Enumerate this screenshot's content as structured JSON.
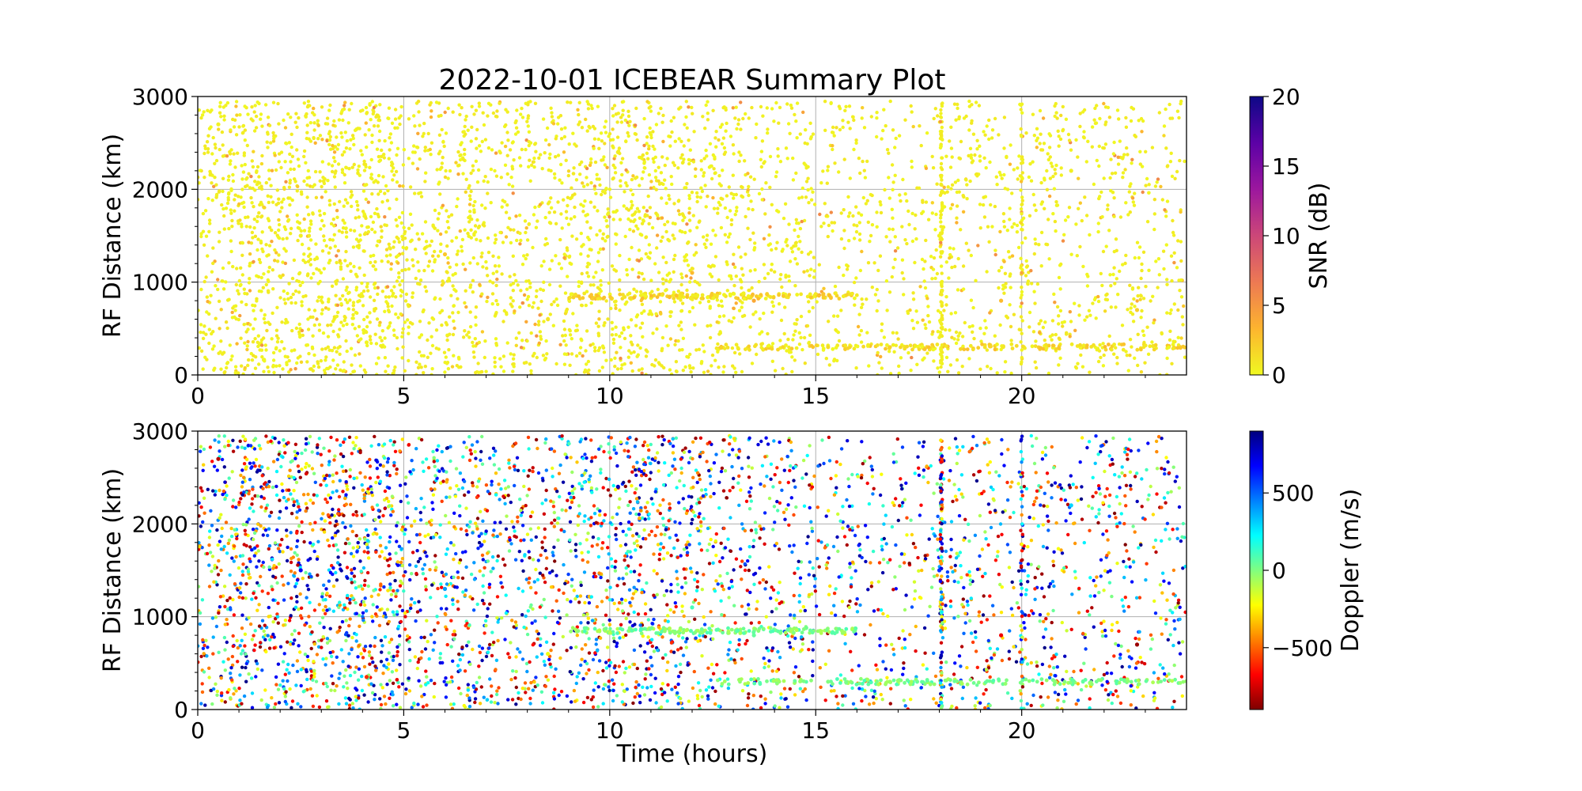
{
  "chart_data": [
    {
      "type": "scatter",
      "title": "2022-10-01 ICEBEAR Summary Plot",
      "xlabel": "",
      "ylabel": "RF Distance (km)",
      "xlim": [
        0,
        24
      ],
      "ylim": [
        0,
        3000
      ],
      "xticks": [
        0,
        5,
        10,
        15,
        20
      ],
      "yticks": [
        0,
        1000,
        2000,
        3000
      ],
      "grid": true,
      "colorbar": {
        "label": "SNR (dB)",
        "range": [
          0,
          20
        ],
        "ticks": [
          0,
          5,
          10,
          15,
          20
        ],
        "colormap": "plasma_r",
        "colors": [
          "#f0f921",
          "#fdb42f",
          "#ed7953",
          "#cc4778",
          "#9c179e",
          "#5c01a6",
          "#0d0887"
        ]
      },
      "series": [
        {
          "density_by_hour": [
            6,
            8,
            7,
            8,
            8,
            5,
            6,
            5,
            5,
            6,
            7,
            6,
            5,
            4,
            4,
            3,
            3,
            3,
            4,
            3,
            4,
            3,
            4,
            3
          ],
          "x_sample_hours": [
            0.5,
            2.5,
            4.1,
            6.0,
            8.5,
            10.2,
            12.0,
            13.5,
            15.3,
            16.8,
            18.0,
            19.5,
            21.2,
            22.8
          ],
          "y_sample_km": [
            2700,
            1500,
            350,
            1300,
            600,
            2400,
            1100,
            800,
            300,
            300,
            1500,
            800,
            2200,
            700
          ],
          "snr_db": [
            0.3,
            0.5,
            0.2,
            2.5,
            1.0,
            0.6,
            3.0,
            4.0,
            1.5,
            2.0,
            0.4,
            3.0,
            0.5,
            2.0
          ],
          "bands": [
            {
              "y": 300,
              "x_from": 12.5,
              "x_to": 24
            },
            {
              "y": 850,
              "x_from": 9,
              "x_to": 16
            }
          ],
          "vertical_streaks_hours": [
            18.05,
            20.0
          ]
        }
      ]
    },
    {
      "type": "scatter",
      "title": "",
      "xlabel": "Time (hours)",
      "ylabel": "RF Distance (km)",
      "xlim": [
        0,
        24
      ],
      "ylim": [
        0,
        3000
      ],
      "xticks": [
        0,
        5,
        10,
        15,
        20
      ],
      "yticks": [
        0,
        1000,
        2000,
        3000
      ],
      "grid": true,
      "colorbar": {
        "label": "Doppler (m/s)",
        "range": [
          -900,
          900
        ],
        "ticks": [
          -500,
          0,
          500
        ],
        "tick_labels": [
          "−500",
          "0",
          "500"
        ],
        "colormap": "jet_r",
        "colors": [
          "#7f0000",
          "#ff0000",
          "#ff8000",
          "#ffff00",
          "#80ff80",
          "#00ffff",
          "#0080ff",
          "#0000ff",
          "#00007f"
        ]
      },
      "series": [
        {
          "density_by_hour": [
            6,
            8,
            7,
            8,
            8,
            5,
            6,
            5,
            5,
            6,
            7,
            6,
            5,
            4,
            4,
            3,
            3,
            3,
            4,
            3,
            4,
            3,
            4,
            3
          ],
          "x_sample_hours": [
            0.5,
            2.5,
            4.1,
            6.0,
            8.5,
            10.2,
            12.0,
            13.5,
            15.3,
            16.8,
            18.0,
            19.5,
            21.2,
            22.8
          ],
          "y_sample_km": [
            2700,
            1500,
            350,
            1300,
            600,
            2400,
            1100,
            800,
            300,
            300,
            1500,
            800,
            2200,
            700
          ],
          "doppler_ms": [
            -800,
            700,
            -600,
            400,
            -200,
            800,
            100,
            50,
            0,
            -50,
            600,
            -700,
            300,
            -850
          ],
          "bands": [
            {
              "y": 300,
              "x_from": 12.5,
              "x_to": 24
            },
            {
              "y": 850,
              "x_from": 9,
              "x_to": 16
            }
          ],
          "vertical_streaks_hours": [
            18.05,
            20.0
          ]
        }
      ]
    }
  ]
}
